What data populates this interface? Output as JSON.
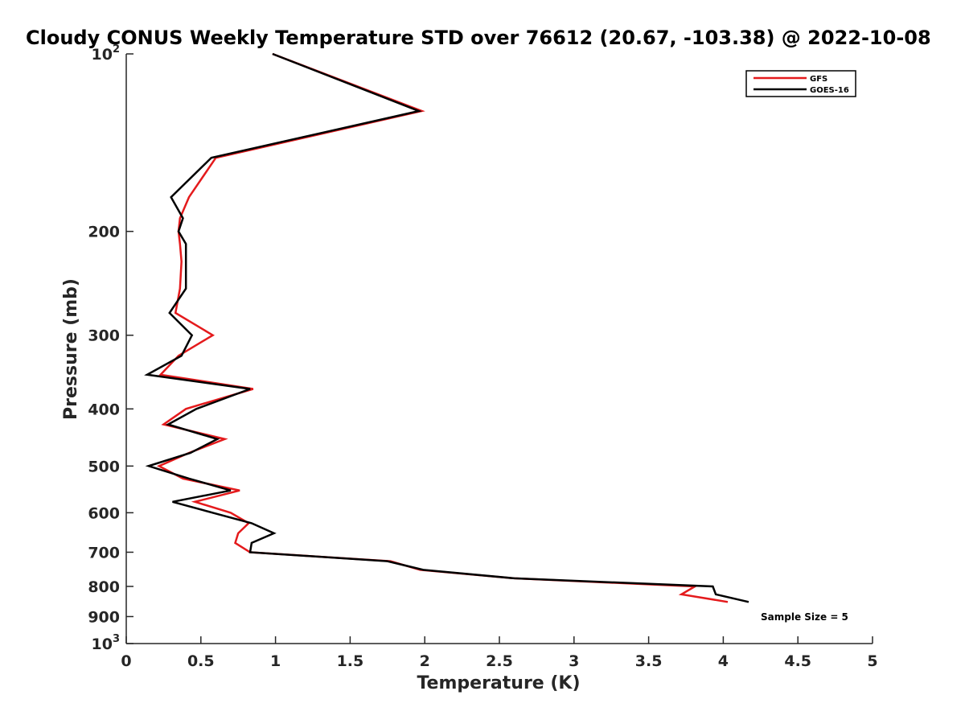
{
  "chart_data": {
    "type": "line",
    "title": "Cloudy CONUS Weekly Temperature STD over 76612 (20.67, -103.38) @ 2022-10-08",
    "xlabel": "Temperature (K)",
    "ylabel": "Pressure (mb)",
    "xlim": [
      0,
      5
    ],
    "ylim": [
      100,
      1000
    ],
    "y_scale": "log",
    "y_reversed": true,
    "x_ticks": [
      0,
      0.5,
      1,
      1.5,
      2,
      2.5,
      3,
      3.5,
      4,
      4.5,
      5
    ],
    "x_tick_labels": [
      "0",
      "0.5",
      "1",
      "1.5",
      "2",
      "2.5",
      "3",
      "3.5",
      "4",
      "4.5",
      "5"
    ],
    "y_ticks": [
      100,
      200,
      300,
      400,
      500,
      600,
      700,
      800,
      900,
      1000
    ],
    "y_tick_labels": [
      {
        "base": "10",
        "exp": "2"
      },
      {
        "base": "200",
        "exp": ""
      },
      {
        "base": "300",
        "exp": ""
      },
      {
        "base": "400",
        "exp": ""
      },
      {
        "base": "500",
        "exp": ""
      },
      {
        "base": "600",
        "exp": ""
      },
      {
        "base": "700",
        "exp": ""
      },
      {
        "base": "800",
        "exp": ""
      },
      {
        "base": "900",
        "exp": ""
      },
      {
        "base": "10",
        "exp": "3"
      }
    ],
    "legend_position": "top-right",
    "grid": false,
    "series": [
      {
        "name": "GFS",
        "color": "#e41a1c",
        "pressure": [
          100,
          125,
          150,
          175,
          190,
          200,
          210,
          225,
          250,
          275,
          300,
          325,
          350,
          370,
          400,
          425,
          450,
          475,
          500,
          525,
          550,
          575,
          600,
          625,
          650,
          675,
          700,
          725,
          750,
          775,
          800,
          825,
          850
        ],
        "temperature": [
          0.98,
          1.98,
          0.6,
          0.42,
          0.36,
          0.35,
          0.36,
          0.37,
          0.36,
          0.33,
          0.58,
          0.35,
          0.23,
          0.85,
          0.4,
          0.25,
          0.66,
          0.42,
          0.22,
          0.38,
          0.76,
          0.46,
          0.7,
          0.82,
          0.75,
          0.73,
          0.83,
          1.77,
          1.97,
          2.6,
          3.81,
          3.72,
          4.03
        ]
      },
      {
        "name": "GOES-16",
        "color": "#000000",
        "pressure": [
          100,
          125,
          150,
          175,
          190,
          200,
          210,
          225,
          250,
          275,
          300,
          325,
          350,
          370,
          400,
          425,
          450,
          475,
          500,
          525,
          550,
          575,
          600,
          625,
          650,
          675,
          700,
          725,
          750,
          775,
          800,
          825,
          850
        ],
        "temperature": [
          0.98,
          1.96,
          0.57,
          0.3,
          0.38,
          0.35,
          0.4,
          0.4,
          0.4,
          0.29,
          0.44,
          0.37,
          0.14,
          0.83,
          0.47,
          0.28,
          0.61,
          0.43,
          0.15,
          0.42,
          0.7,
          0.31,
          0.58,
          0.84,
          0.99,
          0.84,
          0.83,
          1.75,
          1.99,
          2.6,
          3.93,
          3.95,
          4.17
        ]
      }
    ],
    "annotations": [
      "Sample Size = 5"
    ]
  }
}
